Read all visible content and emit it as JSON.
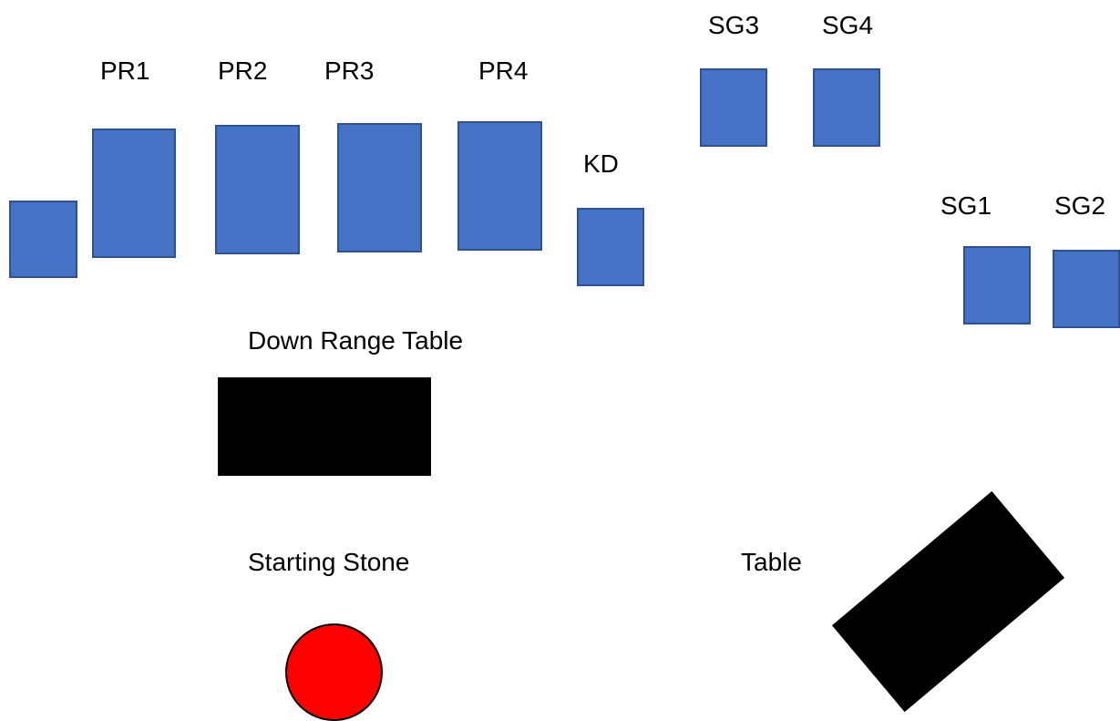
{
  "colors": {
    "target_fill": "#4472c4",
    "target_border": "#2f528f",
    "table_fill": "#000000",
    "stone_fill": "#ff0000",
    "stone_border": "#000000"
  },
  "labels": {
    "pr1": "PR1",
    "pr2": "PR2",
    "pr3": "PR3",
    "pr4": "PR4",
    "sg3": "SG3",
    "sg4": "SG4",
    "kd": "KD",
    "sg1": "SG1",
    "sg2": "SG2",
    "down_range_table": "Down Range Table",
    "starting_stone": "Starting Stone",
    "table": "Table"
  }
}
